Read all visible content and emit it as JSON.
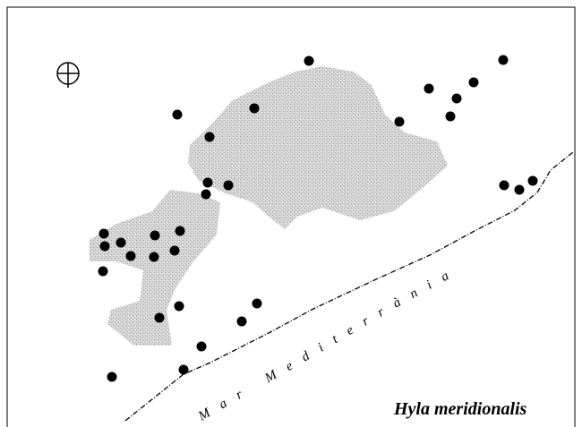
{
  "map": {
    "sea_label": "Mar Mediterrània",
    "species": "Hyla meridionalis"
  }
}
